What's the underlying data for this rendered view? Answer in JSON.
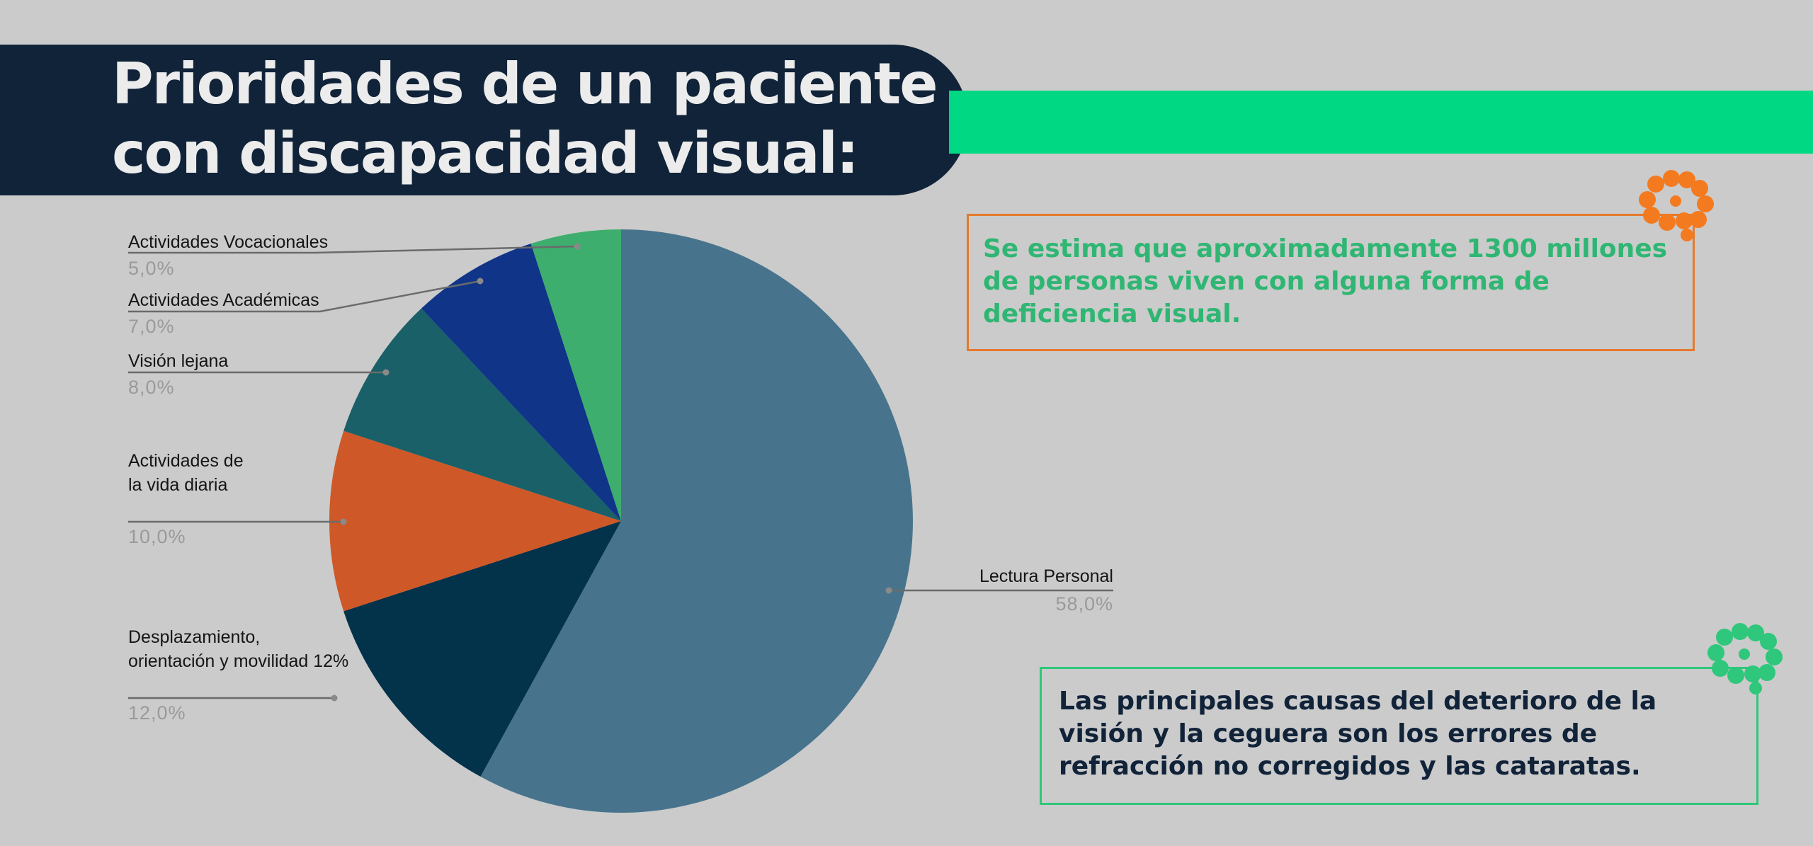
{
  "title": "Prioridades de un paciente\ncon discapacidad visual:",
  "callouts": {
    "top": "Se estima que aproximadamente 1300 millones de personas viven con alguna forma de deficiencia visual.",
    "bottom": "Las principales causas del deterioro de la visión y la ceguera son los errores de refracción no corregidos y las cataratas."
  },
  "icons": {
    "top": "brain-eye-icon",
    "bottom": "brain-eye-icon"
  },
  "colors": {
    "banner": "#112339",
    "accent_green": "#00d883",
    "accent_orange": "#e5792e"
  },
  "chart_data": {
    "type": "pie",
    "title": "Prioridades de un paciente con discapacidad visual:",
    "slices": [
      {
        "label": "Lectura Personal",
        "value": 58.0,
        "value_label": "58,0%",
        "color": "#47748c"
      },
      {
        "label": "Desplazamiento,\norientación y movilidad 12%",
        "value": 12.0,
        "value_label": "12,0%",
        "color": "#03324b"
      },
      {
        "label": "Actividades de\nla vida diaria",
        "value": 10.0,
        "value_label": "10,0%",
        "color": "#ce5827"
      },
      {
        "label": "Visión lejana",
        "value": 8.0,
        "value_label": "8,0%",
        "color": "#196068"
      },
      {
        "label": "Actividades Académicas",
        "value": 7.0,
        "value_label": "7,0%",
        "color": "#0f3488"
      },
      {
        "label": "Actividades Vocacionales",
        "value": 5.0,
        "value_label": "5,0%",
        "color": "#3dae6d"
      }
    ],
    "start": "top",
    "direction": "clockwise",
    "legend": "none (leader-line labels)"
  }
}
